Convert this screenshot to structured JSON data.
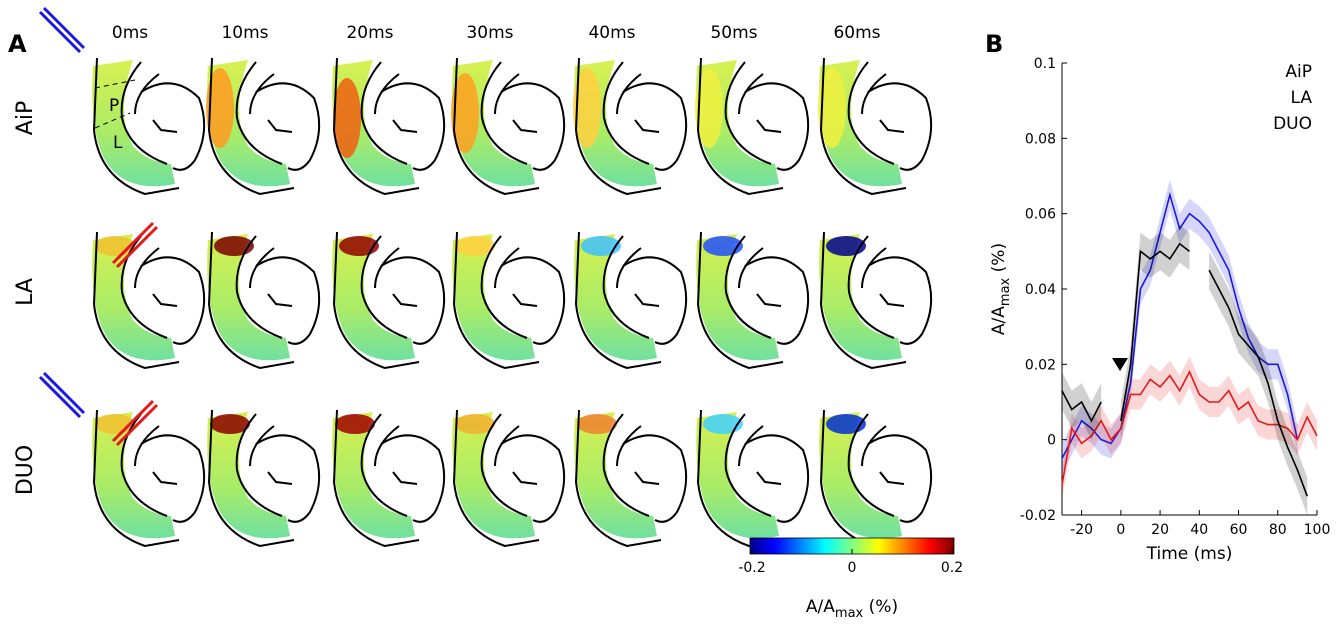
{
  "panel_a": {
    "label": "A",
    "times": [
      "0ms",
      "10ms",
      "20ms",
      "30ms",
      "40ms",
      "50ms",
      "60ms"
    ],
    "rows": [
      "AiP",
      "LA",
      "DUO"
    ],
    "regions": [
      "P",
      "L"
    ],
    "colorbar": {
      "lim": [
        -0.2,
        0.2
      ],
      "ticks": [
        -0.2,
        0,
        0.2
      ],
      "label": [
        "A/A",
        "max",
        " (%)"
      ]
    }
  },
  "chart_data": {
    "type": "line",
    "panel_label": "B",
    "xlabel": "Time (ms)",
    "ylabel": [
      "A/A",
      "max",
      " (%)"
    ],
    "x": [
      -30,
      -25,
      -20,
      -15,
      -10,
      -5,
      0,
      5,
      10,
      15,
      20,
      25,
      30,
      35,
      40,
      45,
      50,
      55,
      60,
      65,
      70,
      75,
      80,
      85,
      90,
      95,
      100
    ],
    "xlim": [
      -30,
      100
    ],
    "xticks": [
      -20,
      0,
      20,
      40,
      60,
      80,
      100
    ],
    "ylim": [
      -0.02,
      0.1
    ],
    "yticks": [
      -0.02,
      0,
      0.02,
      0.04,
      0.06,
      0.08,
      0.1
    ],
    "legend": "upper right",
    "series": [
      {
        "name": "AiP",
        "color": "#1a1adc",
        "error": 0.004,
        "values": [
          -0.005,
          0.0,
          0.005,
          0.003,
          0.0,
          -0.001,
          0.003,
          0.015,
          0.04,
          0.045,
          0.055,
          0.065,
          0.056,
          0.06,
          0.058,
          0.055,
          0.05,
          0.045,
          0.035,
          0.027,
          0.022,
          0.02,
          0.02,
          0.012,
          0.0,
          null,
          null
        ]
      },
      {
        "name": "LA",
        "color": "#e41a1a",
        "error": 0.004,
        "values": [
          -0.012,
          0.003,
          -0.001,
          0.001,
          0.005,
          0.0,
          0.003,
          0.012,
          0.012,
          0.016,
          0.014,
          0.017,
          0.013,
          0.018,
          0.012,
          0.01,
          0.01,
          0.013,
          0.008,
          0.01,
          0.005,
          0.004,
          0.004,
          0.003,
          0.0,
          0.006,
          0.001
        ]
      },
      {
        "name": "DUO",
        "color": "#000000",
        "error": 0.005,
        "values": [
          0.013,
          0.008,
          0.01,
          0.005,
          0.01,
          null,
          0.005,
          0.02,
          0.05,
          0.048,
          0.05,
          0.048,
          0.052,
          0.05,
          null,
          0.045,
          0.04,
          0.035,
          0.028,
          0.025,
          0.022,
          0.015,
          0.005,
          -0.002,
          -0.008,
          -0.015,
          null
        ]
      }
    ]
  }
}
